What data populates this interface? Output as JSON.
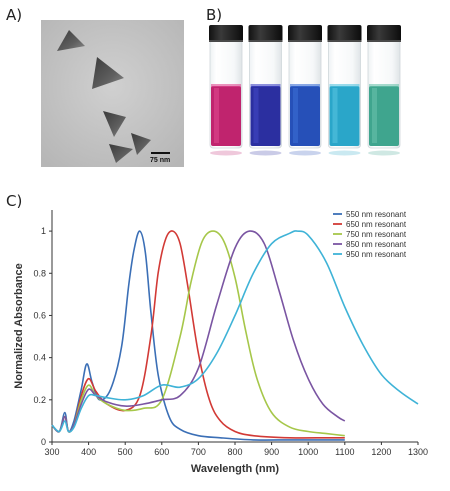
{
  "panels": {
    "a": {
      "label": "A)",
      "scale_bar": "75 nm"
    },
    "b": {
      "label": "B)"
    },
    "c": {
      "label": "C)"
    }
  },
  "vials": [
    {
      "liquid_color": "#c0246e",
      "highlight": "#e04a91"
    },
    {
      "liquid_color": "#2b2fa0",
      "highlight": "#4348c6"
    },
    {
      "liquid_color": "#2650b8",
      "highlight": "#3d6fd6"
    },
    {
      "liquid_color": "#2aa6c9",
      "highlight": "#59c5e0"
    },
    {
      "liquid_color": "#3fa58e",
      "highlight": "#6cc3ad"
    }
  ],
  "chart_data": {
    "type": "line",
    "xlabel": "Wavelength (nm)",
    "ylabel": "Normalized Absorbance",
    "xlim": [
      300,
      1300
    ],
    "ylim": [
      0,
      1.1
    ],
    "xticks": [
      300,
      400,
      500,
      600,
      700,
      800,
      900,
      1000,
      1100,
      1200,
      1300
    ],
    "yticks": [
      0,
      0.2,
      0.4,
      0.6,
      0.8,
      1
    ],
    "ytick_labels": [
      "0",
      "0.2",
      "0.4",
      "0.6",
      "0.8",
      "1"
    ],
    "legend_position": "top-right",
    "grid": false,
    "series": [
      {
        "name": "550 nm resonant",
        "color": "#3b6fb6",
        "x": [
          300,
          320,
          335,
          345,
          360,
          380,
          395,
          410,
          430,
          460,
          490,
          510,
          525,
          540,
          555,
          570,
          590,
          620,
          650,
          700,
          760,
          850,
          950,
          1050,
          1100
        ],
        "y": [
          0.08,
          0.05,
          0.14,
          0.05,
          0.1,
          0.25,
          0.37,
          0.28,
          0.2,
          0.25,
          0.45,
          0.75,
          0.92,
          1.0,
          0.9,
          0.62,
          0.32,
          0.12,
          0.06,
          0.03,
          0.02,
          0.01,
          0.01,
          0.01,
          0.01
        ]
      },
      {
        "name": "650 nm resonant",
        "color": "#d23a36",
        "x": [
          300,
          320,
          335,
          345,
          360,
          380,
          400,
          420,
          450,
          500,
          540,
          570,
          590,
          610,
          630,
          650,
          670,
          700,
          730,
          760,
          800,
          850,
          950,
          1050,
          1100
        ],
        "y": [
          0.08,
          0.05,
          0.12,
          0.05,
          0.08,
          0.22,
          0.3,
          0.24,
          0.18,
          0.15,
          0.22,
          0.5,
          0.8,
          0.96,
          1.0,
          0.94,
          0.75,
          0.42,
          0.2,
          0.1,
          0.05,
          0.03,
          0.02,
          0.02,
          0.02
        ]
      },
      {
        "name": "750 nm resonant",
        "color": "#a6c74a",
        "x": [
          300,
          320,
          335,
          345,
          360,
          380,
          400,
          420,
          450,
          500,
          550,
          600,
          650,
          680,
          710,
          740,
          770,
          800,
          830,
          860,
          900,
          950,
          1000,
          1050,
          1100
        ],
        "y": [
          0.08,
          0.05,
          0.12,
          0.05,
          0.08,
          0.2,
          0.27,
          0.22,
          0.18,
          0.15,
          0.16,
          0.2,
          0.5,
          0.76,
          0.95,
          1.0,
          0.95,
          0.78,
          0.52,
          0.3,
          0.14,
          0.07,
          0.05,
          0.04,
          0.03
        ]
      },
      {
        "name": "850 nm resonant",
        "color": "#7a55a2",
        "x": [
          300,
          320,
          335,
          345,
          360,
          380,
          400,
          420,
          450,
          500,
          550,
          600,
          650,
          700,
          750,
          800,
          840,
          880,
          920,
          960,
          1000,
          1040,
          1080,
          1100
        ],
        "y": [
          0.08,
          0.05,
          0.12,
          0.05,
          0.08,
          0.18,
          0.25,
          0.22,
          0.19,
          0.17,
          0.18,
          0.2,
          0.22,
          0.35,
          0.65,
          0.92,
          1.0,
          0.94,
          0.72,
          0.48,
          0.3,
          0.18,
          0.12,
          0.1
        ]
      },
      {
        "name": "950 nm resonant",
        "color": "#3fb3d7",
        "x": [
          300,
          320,
          335,
          345,
          360,
          380,
          400,
          420,
          450,
          500,
          550,
          600,
          650,
          700,
          750,
          800,
          850,
          900,
          950,
          970,
          1000,
          1050,
          1100,
          1150,
          1200,
          1250,
          1300
        ],
        "y": [
          0.08,
          0.05,
          0.1,
          0.05,
          0.07,
          0.16,
          0.22,
          0.22,
          0.21,
          0.2,
          0.22,
          0.27,
          0.26,
          0.3,
          0.42,
          0.6,
          0.8,
          0.94,
          0.99,
          1.0,
          0.98,
          0.85,
          0.64,
          0.46,
          0.32,
          0.24,
          0.18
        ]
      }
    ]
  }
}
